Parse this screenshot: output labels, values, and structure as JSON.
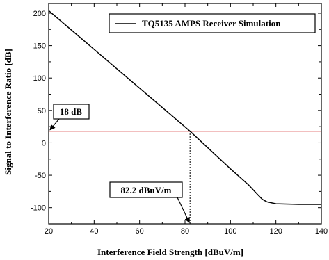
{
  "chart_data": {
    "type": "line",
    "title": "",
    "xlabel": "Interference Field Strength [dBuV/m]",
    "ylabel": "Signal to Interference Ratio [dB]",
    "xlim": [
      20,
      140
    ],
    "ylim": [
      -125,
      215
    ],
    "xticks": [
      20,
      40,
      60,
      80,
      100,
      120,
      140
    ],
    "yticks": [
      -100,
      -50,
      0,
      50,
      100,
      150,
      200
    ],
    "legend_position": "top-right",
    "grid": false,
    "series": [
      {
        "name": "TQ5135 AMPS Receiver Simulation",
        "color": "#000000",
        "x": [
          20,
          82.2,
          100,
          108,
          112,
          114,
          116,
          120,
          130,
          140
        ],
        "y": [
          204,
          18,
          -40,
          -65,
          -80,
          -87,
          -91,
          -94,
          -95,
          -95
        ]
      }
    ],
    "reference_lines": [
      {
        "axis": "y",
        "value": 18,
        "color": "#cc0000"
      },
      {
        "axis": "x",
        "value": 82.2,
        "style": "dotted",
        "color": "#000000"
      }
    ],
    "annotations": [
      {
        "text": "18 dB",
        "points_to": [
          20,
          18
        ]
      },
      {
        "text": "82.2 dBuV/m",
        "points_to": [
          82.2,
          -125
        ]
      }
    ]
  }
}
